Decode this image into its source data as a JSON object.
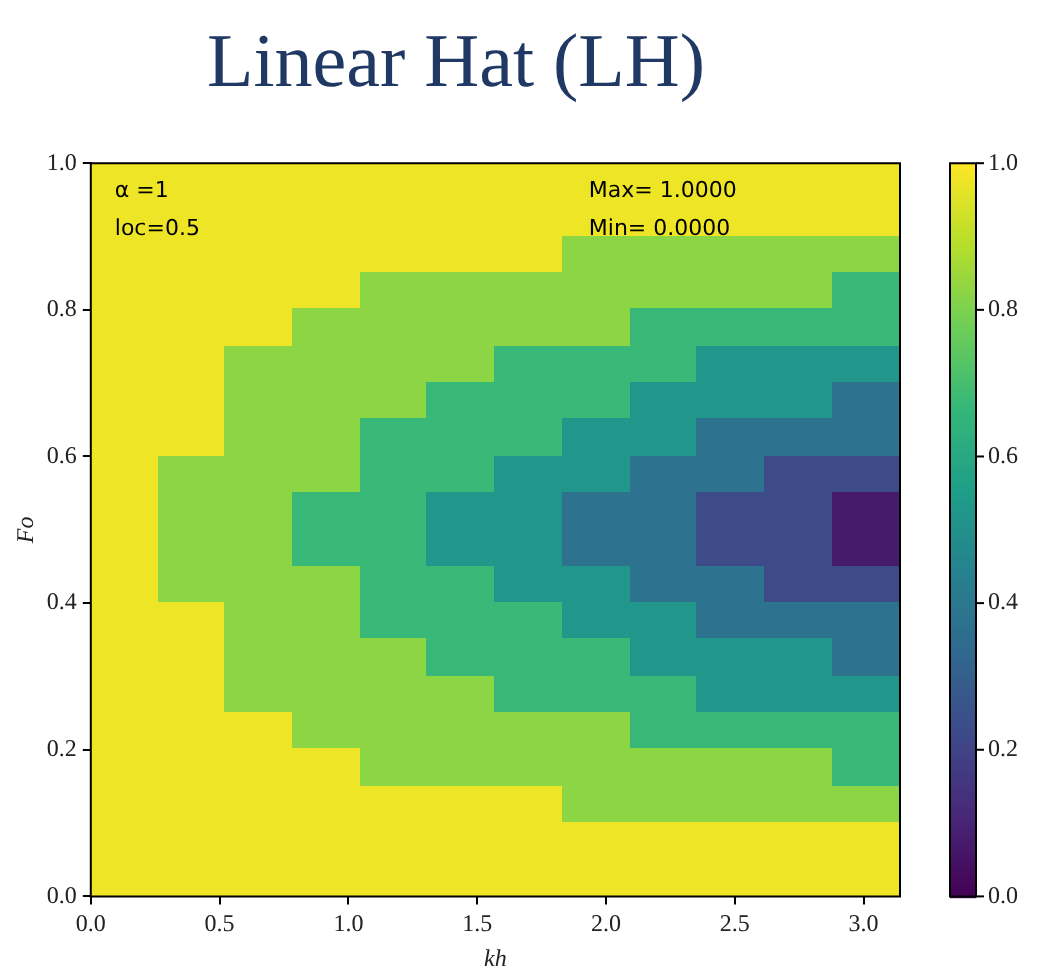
{
  "chart_data": {
    "type": "heatmap",
    "title": "Linear Hat (LH)",
    "xlabel": "kh",
    "ylabel": "Fo",
    "annotations": [
      "α =1",
      "loc=0.5",
      "Max= 1.0000",
      "Min= 0.0000"
    ],
    "x": [
      0.131,
      0.393,
      0.654,
      0.916,
      1.178,
      1.44,
      1.702,
      1.963,
      2.225,
      2.487,
      2.749,
      3.011
    ],
    "y": [
      0.975,
      0.925,
      0.875,
      0.825,
      0.775,
      0.725,
      0.675,
      0.625,
      0.575,
      0.525,
      0.475,
      0.425,
      0.375,
      0.325,
      0.275,
      0.225,
      0.175,
      0.125,
      0.075,
      0.025
    ],
    "cells": [
      [
        0.975,
        0.975,
        0.975,
        0.975,
        0.975,
        0.975,
        0.975,
        0.975,
        0.975,
        0.975,
        0.975,
        0.975
      ],
      [
        0.975,
        0.975,
        0.975,
        0.975,
        0.975,
        0.975,
        0.975,
        0.975,
        0.975,
        0.975,
        0.975,
        0.975
      ],
      [
        0.975,
        0.975,
        0.975,
        0.975,
        0.975,
        0.975,
        0.975,
        0.825,
        0.825,
        0.825,
        0.825,
        0.825
      ],
      [
        0.975,
        0.975,
        0.975,
        0.975,
        0.825,
        0.825,
        0.825,
        0.825,
        0.825,
        0.825,
        0.825,
        0.675
      ],
      [
        0.975,
        0.975,
        0.975,
        0.825,
        0.825,
        0.825,
        0.825,
        0.825,
        0.675,
        0.675,
        0.675,
        0.675
      ],
      [
        0.975,
        0.975,
        0.825,
        0.825,
        0.825,
        0.825,
        0.675,
        0.675,
        0.675,
        0.525,
        0.525,
        0.525
      ],
      [
        0.975,
        0.975,
        0.825,
        0.825,
        0.825,
        0.675,
        0.675,
        0.675,
        0.525,
        0.525,
        0.525,
        0.375
      ],
      [
        0.975,
        0.975,
        0.825,
        0.825,
        0.675,
        0.675,
        0.675,
        0.525,
        0.525,
        0.375,
        0.375,
        0.375
      ],
      [
        0.975,
        0.825,
        0.825,
        0.825,
        0.675,
        0.675,
        0.525,
        0.525,
        0.375,
        0.375,
        0.225,
        0.225
      ],
      [
        0.975,
        0.825,
        0.825,
        0.675,
        0.675,
        0.525,
        0.525,
        0.375,
        0.375,
        0.225,
        0.225,
        0.075
      ],
      [
        0.975,
        0.825,
        0.825,
        0.675,
        0.675,
        0.525,
        0.525,
        0.375,
        0.375,
        0.225,
        0.225,
        0.075
      ],
      [
        0.975,
        0.825,
        0.825,
        0.825,
        0.675,
        0.675,
        0.525,
        0.525,
        0.375,
        0.375,
        0.225,
        0.225
      ],
      [
        0.975,
        0.975,
        0.825,
        0.825,
        0.675,
        0.675,
        0.675,
        0.525,
        0.525,
        0.375,
        0.375,
        0.375
      ],
      [
        0.975,
        0.975,
        0.825,
        0.825,
        0.825,
        0.675,
        0.675,
        0.675,
        0.525,
        0.525,
        0.525,
        0.375
      ],
      [
        0.975,
        0.975,
        0.825,
        0.825,
        0.825,
        0.825,
        0.675,
        0.675,
        0.675,
        0.525,
        0.525,
        0.525
      ],
      [
        0.975,
        0.975,
        0.975,
        0.825,
        0.825,
        0.825,
        0.825,
        0.825,
        0.675,
        0.675,
        0.675,
        0.675
      ],
      [
        0.975,
        0.975,
        0.975,
        0.975,
        0.825,
        0.825,
        0.825,
        0.825,
        0.825,
        0.825,
        0.825,
        0.675
      ],
      [
        0.975,
        0.975,
        0.975,
        0.975,
        0.975,
        0.975,
        0.975,
        0.825,
        0.825,
        0.825,
        0.825,
        0.825
      ],
      [
        0.975,
        0.975,
        0.975,
        0.975,
        0.975,
        0.975,
        0.975,
        0.975,
        0.975,
        0.975,
        0.975,
        0.975
      ],
      [
        0.975,
        0.975,
        0.975,
        0.975,
        0.975,
        0.975,
        0.975,
        0.975,
        0.975,
        0.975,
        0.975,
        0.975
      ]
    ],
    "xlim": [
      0,
      3.1416
    ],
    "ylim": [
      0,
      1
    ],
    "xticks": [
      {
        "value": 0,
        "label": "0.0"
      },
      0.5,
      {
        "value": 1,
        "label": "1.0"
      },
      1.5,
      {
        "value": 2,
        "label": "2.0"
      },
      2.5,
      {
        "value": 3,
        "label": "3.0"
      }
    ],
    "yticks": [
      {
        "value": 0,
        "label": "0.0"
      },
      0.2,
      0.4,
      0.6,
      0.8,
      {
        "value": 1,
        "label": "1.0"
      }
    ],
    "clim": [
      0,
      1
    ],
    "cticks": [
      {
        "value": 0,
        "label": "0.0"
      },
      0.2,
      0.4,
      0.6,
      0.8,
      {
        "value": 1,
        "label": "1.0"
      }
    ],
    "grid": false,
    "legend": false
  }
}
